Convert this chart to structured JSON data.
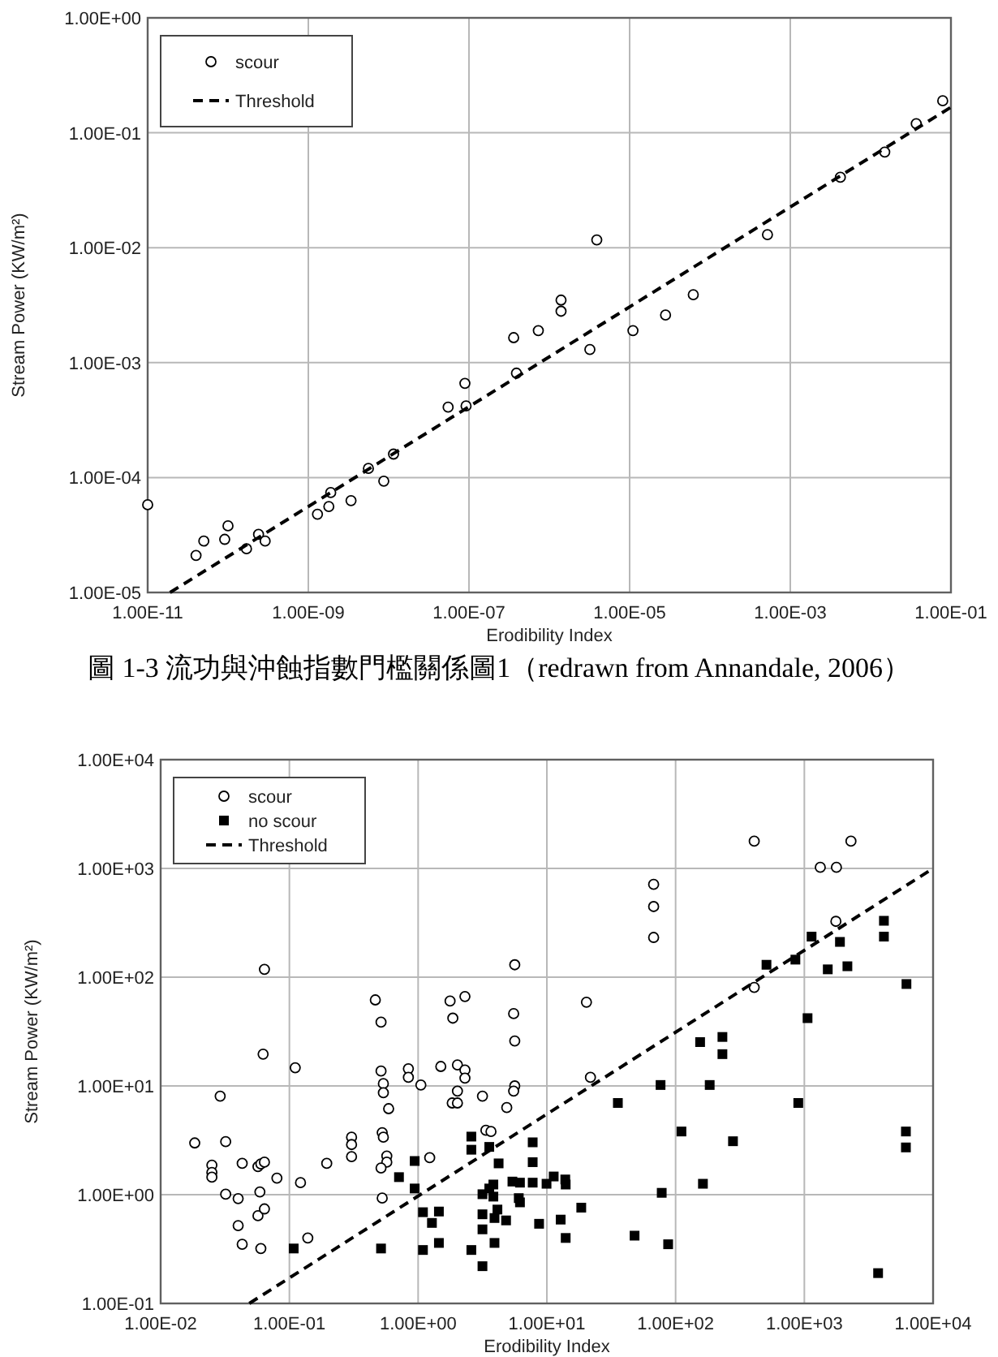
{
  "chart_data": [
    {
      "type": "scatter",
      "xlabel": "Erodibility Index",
      "ylabel": "Stream Power (KW/m²)",
      "log": "xy",
      "grid": true,
      "legend": "top left",
      "xlim": [
        1e-11,
        0.1
      ],
      "ylim": [
        1e-05,
        1
      ],
      "xticks": [
        {
          "value": 1e-11,
          "label": "1.00E-11"
        },
        {
          "value": 1e-09,
          "label": "1.00E-09"
        },
        {
          "value": 1e-07,
          "label": "1.00E-07"
        },
        {
          "value": 1e-05,
          "label": "1.00E-05"
        },
        {
          "value": 0.001,
          "label": "1.00E-03"
        },
        {
          "value": 0.1,
          "label": "1.00E-01"
        }
      ],
      "yticks": [
        {
          "value": 1e-05,
          "label": "1.00E-05"
        },
        {
          "value": 0.0001,
          "label": "1.00E-04"
        },
        {
          "value": 0.001,
          "label": "1.00E-03"
        },
        {
          "value": 0.01,
          "label": "1.00E-02"
        },
        {
          "value": 0.1,
          "label": "1.00E-01"
        },
        {
          "value": 1,
          "label": "1.00E+00"
        }
      ],
      "annotations": [
        "圖 1-3 流功與沖蝕指數門檻關係圖1（redrawn from Annandale, 2006）"
      ],
      "series": [
        {
          "name": "scour",
          "type": "scatter",
          "marker": "circle",
          "color": "#000000",
          "x": [
            1e-11,
            4e-11,
            5e-11,
            9.1e-11,
            1e-10,
            1.7e-10,
            2.4e-10,
            2.9e-10,
            1.3e-09,
            1.8e-09,
            1.9e-09,
            3.4e-09,
            5.6e-09,
            8.7e-09,
            1.15e-08,
            5.5e-08,
            8.9e-08,
            9.2e-08,
            3.6e-07,
            3.9e-07,
            7.3e-07,
            1.4e-06,
            1.4e-06,
            3.2e-06,
            3.9e-06,
            1.1e-05,
            2.8e-05,
            6.2e-05,
            0.00052,
            0.0042,
            0.015,
            0.037,
            0.079
          ],
          "values": [
            5.8e-05,
            2.1e-05,
            2.8e-05,
            2.9e-05,
            3.8e-05,
            2.4e-05,
            3.2e-05,
            2.8e-05,
            4.8e-05,
            5.6e-05,
            7.4e-05,
            6.3e-05,
            0.00012,
            9.3e-05,
            0.00016,
            0.00041,
            0.00066,
            0.00042,
            0.00165,
            0.00081,
            0.0019,
            0.0035,
            0.0028,
            0.0013,
            0.0117,
            0.0019,
            0.0026,
            0.0039,
            0.013,
            0.041,
            0.068,
            0.12,
            0.19
          ]
        },
        {
          "name": "Threshold",
          "type": "line",
          "marker": "none",
          "line_style": "dashed",
          "color": "#000000",
          "x": [
            1.9e-11,
            0.1
          ],
          "values": [
            1e-05,
            0.167
          ]
        }
      ]
    },
    {
      "type": "scatter",
      "xlabel": "Erodibility Index",
      "ylabel": "Stream Power (KW/m²)",
      "log": "xy",
      "grid": true,
      "legend": "top left",
      "xlim": [
        0.01,
        10000
      ],
      "ylim": [
        0.1,
        10000
      ],
      "xticks": [
        {
          "value": 0.01,
          "label": "1.00E-02"
        },
        {
          "value": 0.1,
          "label": "1.00E-01"
        },
        {
          "value": 1,
          "label": "1.00E+00"
        },
        {
          "value": 10,
          "label": "1.00E+01"
        },
        {
          "value": 100,
          "label": "1.00E+02"
        },
        {
          "value": 1000,
          "label": "1.00E+03"
        },
        {
          "value": 10000,
          "label": "1.00E+04"
        }
      ],
      "yticks": [
        {
          "value": 0.1,
          "label": "1.00E-01"
        },
        {
          "value": 1,
          "label": "1.00E+00"
        },
        {
          "value": 10,
          "label": "1.00E+01"
        },
        {
          "value": 100,
          "label": "1.00E+02"
        },
        {
          "value": 1000,
          "label": "1.00E+03"
        },
        {
          "value": 10000,
          "label": "1.00E+04"
        }
      ],
      "series": [
        {
          "name": "scour",
          "type": "scatter",
          "marker": "circle",
          "color": "#000000",
          "x": [
            0.0184,
            0.025,
            0.025,
            0.025,
            0.029,
            0.032,
            0.032,
            0.04,
            0.04,
            0.043,
            0.043,
            0.057,
            0.06,
            0.064,
            0.059,
            0.057,
            0.064,
            0.06,
            0.064,
            0.0625,
            0.08,
            0.111,
            0.122,
            0.139,
            0.195,
            0.304,
            0.304,
            0.304,
            0.465,
            0.515,
            0.515,
            0.537,
            0.537,
            0.59,
            0.526,
            0.537,
            0.571,
            0.571,
            0.515,
            0.526,
            0.84,
            0.84,
            1.05,
            1.23,
            1.5,
            1.77,
            1.86,
            2.31,
            2.02,
            2.31,
            2.31,
            2.02,
            1.84,
            2.02,
            3.16,
            3.36,
            3.68,
            5.63,
            5.52,
            5.63,
            5.63,
            5.52,
            4.88,
            20.3,
            21.8,
            67.5,
            67.5,
            67.5,
            408,
            408,
            1330,
            1775,
            1758,
            2301
          ],
          "values": [
            2.99,
            1.87,
            1.6,
            1.45,
            8.05,
            3.07,
            1.01,
            0.92,
            0.52,
            1.94,
            0.35,
            1.81,
            1.92,
            1.99,
            1.06,
            0.64,
            0.74,
            0.32,
            118,
            19.6,
            1.42,
            14.7,
            1.29,
            0.4,
            1.94,
            3.38,
            2.89,
            2.24,
            61.8,
            38.6,
            13.7,
            10.5,
            8.65,
            6.18,
            3.72,
            3.38,
            2.27,
            1.99,
            1.76,
            0.93,
            14.4,
            12,
            10.2,
            2.19,
            15.1,
            60.3,
            42,
            66.4,
            15.6,
            14,
            11.8,
            8.97,
            6.97,
            6.97,
            8.05,
            3.91,
            3.81,
            130,
            46.2,
            25.9,
            10,
            8.97,
            6.32,
            58.9,
            12,
            713,
            446,
            232,
            80.6,
            1782,
            1023,
            1023,
            326,
            1782
          ]
        },
        {
          "name": "no scour",
          "type": "scatter",
          "marker": "square",
          "color": "#000000",
          "x": [
            0.108,
            0.515,
            0.71,
            0.94,
            0.94,
            1.09,
            1.09,
            1.28,
            1.45,
            1.45,
            2.59,
            2.59,
            2.59,
            3.16,
            3.16,
            3.16,
            3.16,
            3.57,
            3.57,
            3.84,
            3.84,
            3.92,
            4.13,
            3.92,
            4.22,
            4.82,
            5.4,
            6.18,
            6.05,
            6.18,
            7.76,
            7.76,
            7.76,
            8.7,
            9.94,
            11.3,
            12.8,
            13.9,
            14,
            14,
            18.5,
            35.6,
            48,
            76.4,
            78,
            87.5,
            111,
            155,
            163,
            184,
            231,
            231,
            279,
            508,
            852,
            897,
            1059,
            1138,
            1520,
            1890,
            2160,
            3740,
            4150,
            4150,
            6210,
            6150,
            6150
          ],
          "values": [
            0.32,
            0.32,
            1.45,
            2.04,
            1.14,
            0.69,
            0.31,
            0.55,
            0.7,
            0.36,
            3.42,
            2.59,
            0.31,
            1.01,
            0.66,
            0.48,
            0.22,
            1.14,
            2.75,
            1.24,
            0.96,
            0.61,
            0.73,
            0.36,
            1.94,
            0.58,
            1.32,
            1.29,
            0.93,
            0.85,
            3.03,
            1.99,
            1.29,
            0.54,
            1.26,
            1.47,
            0.59,
            1.38,
            1.24,
            0.4,
            0.76,
            6.97,
            0.42,
            10.2,
            1.04,
            0.35,
            3.81,
            25.3,
            1.26,
            10.2,
            28.2,
            19.6,
            3.1,
            130,
            145,
            6.97,
            42,
            236,
            118,
            211,
            126,
            0.19,
            330,
            236,
            86.5,
            3.81,
            2.72
          ]
        },
        {
          "name": "Threshold",
          "type": "line",
          "marker": "none",
          "line_style": "dashed",
          "color": "#000000",
          "x": [
            0.0488,
            10000
          ],
          "values": [
            0.1,
            1000
          ]
        }
      ]
    }
  ]
}
